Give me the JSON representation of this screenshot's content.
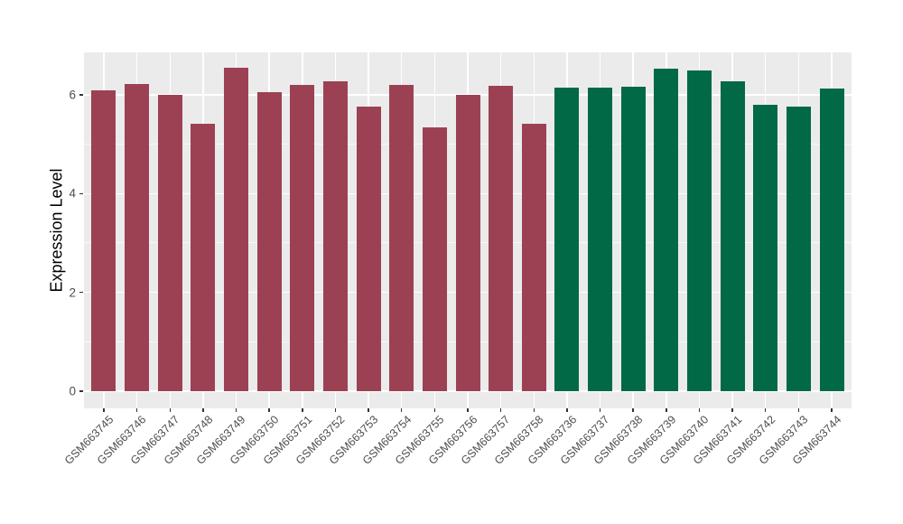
{
  "chart_data": {
    "type": "bar",
    "title": "",
    "xlabel": "",
    "ylabel": "Expression Level",
    "ylim": [
      -0.35,
      6.86
    ],
    "yticks": [
      0,
      2,
      4,
      6
    ],
    "ytick_labels": [
      "0",
      "2",
      "4",
      "6"
    ],
    "yticks_minor": [
      1,
      3,
      5
    ],
    "grid": "white major and minor horizontal lines plus vertical category lines on grey panel",
    "legend_position": "none",
    "x_tick_rotation_deg": 45,
    "groups": {
      "group1": "#9C4153",
      "group2": "#016946"
    },
    "bars": [
      {
        "label": "GSM663745",
        "value": 6.1,
        "group": "group1"
      },
      {
        "label": "GSM663746",
        "value": 6.22,
        "group": "group1"
      },
      {
        "label": "GSM663747",
        "value": 6.0,
        "group": "group1"
      },
      {
        "label": "GSM663748",
        "value": 5.42,
        "group": "group1"
      },
      {
        "label": "GSM663749",
        "value": 6.55,
        "group": "group1"
      },
      {
        "label": "GSM663750",
        "value": 6.06,
        "group": "group1"
      },
      {
        "label": "GSM663751",
        "value": 6.2,
        "group": "group1"
      },
      {
        "label": "GSM663752",
        "value": 6.28,
        "group": "group1"
      },
      {
        "label": "GSM663753",
        "value": 5.77,
        "group": "group1"
      },
      {
        "label": "GSM663754",
        "value": 6.21,
        "group": "group1"
      },
      {
        "label": "GSM663755",
        "value": 5.35,
        "group": "group1"
      },
      {
        "label": "GSM663756",
        "value": 6.0,
        "group": "group1"
      },
      {
        "label": "GSM663757",
        "value": 6.18,
        "group": "group1"
      },
      {
        "label": "GSM663758",
        "value": 5.41,
        "group": "group1"
      },
      {
        "label": "GSM663736",
        "value": 6.15,
        "group": "group2"
      },
      {
        "label": "GSM663737",
        "value": 6.15,
        "group": "group2"
      },
      {
        "label": "GSM663738",
        "value": 6.17,
        "group": "group2"
      },
      {
        "label": "GSM663739",
        "value": 6.53,
        "group": "group2"
      },
      {
        "label": "GSM663740",
        "value": 6.5,
        "group": "group2"
      },
      {
        "label": "GSM663741",
        "value": 6.28,
        "group": "group2"
      },
      {
        "label": "GSM663742",
        "value": 5.79,
        "group": "group2"
      },
      {
        "label": "GSM663743",
        "value": 5.76,
        "group": "group2"
      },
      {
        "label": "GSM663744",
        "value": 6.12,
        "group": "group2"
      }
    ]
  },
  "style": {
    "figure_background": "#FFFFFF",
    "panel_background": "#EBEBEB",
    "grid_color": "#FFFFFF",
    "tick_mark_color": "#333333",
    "tick_label_color": "#4D4D4D",
    "axis_title_color": "#000000"
  }
}
